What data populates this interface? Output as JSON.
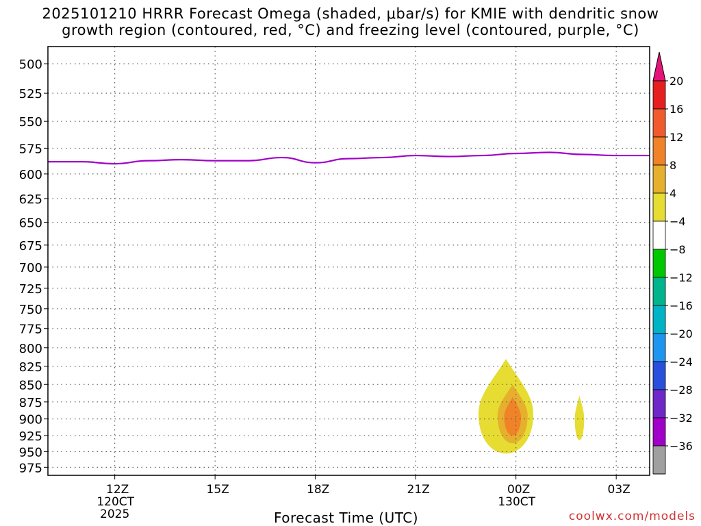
{
  "title": {
    "line1": "2025101210 HRRR Forecast Omega (shaded, μbar/s) for KMIE with dendritic snow",
    "line2": "growth region (contoured, red, °C) and freezing level (contoured, purple, °C)"
  },
  "credit": "coolwx.com/models",
  "colors": {
    "freezing_level": "#a000c8",
    "ground": "#a0522d",
    "omega_4_8": "#e6dc32",
    "omega_8_12": "#e6af2d",
    "omega_12_16": "#f08228"
  },
  "chart_data": {
    "type": "heatmap",
    "xlabel": "Forecast Time (UTC)",
    "ylabel": "",
    "x_ticks": [
      {
        "hour": 12,
        "label": "12Z",
        "sub1": "120CT",
        "sub2": "2025"
      },
      {
        "hour": 15,
        "label": "15Z",
        "sub1": "",
        "sub2": ""
      },
      {
        "hour": 18,
        "label": "18Z",
        "sub1": "",
        "sub2": ""
      },
      {
        "hour": 21,
        "label": "21Z",
        "sub1": "",
        "sub2": ""
      },
      {
        "hour": 24,
        "label": "00Z",
        "sub1": "130CT",
        "sub2": ""
      },
      {
        "hour": 27,
        "label": "03Z",
        "sub1": "",
        "sub2": ""
      }
    ],
    "xlim_hours": [
      10,
      28
    ],
    "y_scale": "log-pressure",
    "ylim_mb": [
      486,
      988
    ],
    "y_ticks": [
      500,
      525,
      550,
      575,
      600,
      625,
      650,
      675,
      700,
      725,
      750,
      775,
      800,
      825,
      850,
      875,
      900,
      925,
      950,
      975
    ],
    "grid": true,
    "series": [
      {
        "name": "freezing level",
        "color": "#a000c8",
        "points": [
          [
            10,
            588
          ],
          [
            11,
            588
          ],
          [
            12,
            590
          ],
          [
            13,
            587
          ],
          [
            14,
            586
          ],
          [
            15,
            587
          ],
          [
            16,
            587
          ],
          [
            17,
            584
          ],
          [
            18,
            589
          ],
          [
            19,
            585
          ],
          [
            20,
            584
          ],
          [
            21,
            582
          ],
          [
            22,
            583
          ],
          [
            23,
            582
          ],
          [
            24,
            580
          ],
          [
            25,
            579
          ],
          [
            26,
            581
          ],
          [
            27,
            582
          ],
          [
            28,
            582
          ]
        ]
      }
    ],
    "omega_regions": [
      {
        "range": "4-8",
        "color": "#e6dc32",
        "center": [
          23.7,
          893
        ],
        "half_width_hours": 0.82,
        "top_mb": 815,
        "bottom_mb": 953
      },
      {
        "range": "8-12",
        "color": "#e6af2d",
        "center": [
          23.9,
          895
        ],
        "half_width_hours": 0.45,
        "top_mb": 850,
        "bottom_mb": 937
      },
      {
        "range": "12-16",
        "color": "#f08228",
        "center": [
          23.9,
          897
        ],
        "half_width_hours": 0.25,
        "top_mb": 868,
        "bottom_mb": 925
      },
      {
        "range": "4-8",
        "color": "#e6dc32",
        "center": [
          25.9,
          900
        ],
        "half_width_hours": 0.14,
        "top_mb": 866,
        "bottom_mb": 932
      }
    ],
    "ground": {
      "color": "#a0522d",
      "level_mb": 988
    },
    "colorbar": {
      "levels": [
        "20",
        "16",
        "12",
        "8",
        "4",
        "−4",
        "−8",
        "−12",
        "−16",
        "−20",
        "−24",
        "−28",
        "−32",
        "−36"
      ],
      "colors": [
        "#e61e1e",
        "#f05a2d",
        "#f08228",
        "#e6af2d",
        "#e6dc32",
        "#ffffff",
        "#00c800",
        "#00b48c",
        "#00b4c8",
        "#1e96f0",
        "#2850dc",
        "#6e28c8",
        "#a000c8",
        "#a0a0a0"
      ],
      "top_cap_color": "#e6147a",
      "bottom_cap_color": "#000000"
    }
  }
}
